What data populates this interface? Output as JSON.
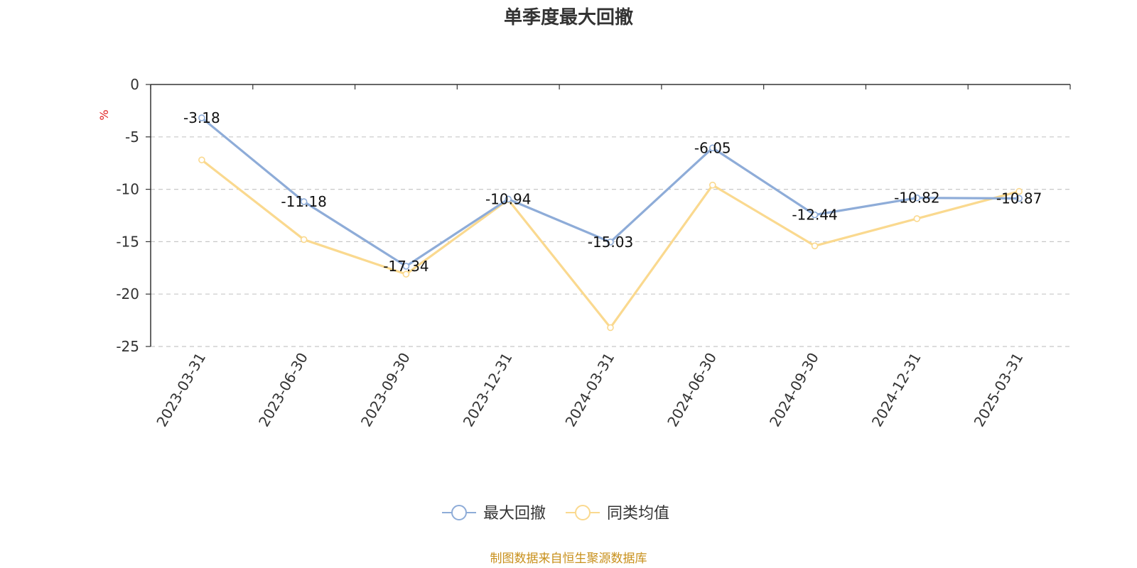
{
  "chart_data": {
    "type": "line",
    "title": "单季度最大回撤",
    "ylabel": "%",
    "xlabel": "",
    "categories": [
      "2023-03-31",
      "2023-06-30",
      "2023-09-30",
      "2023-12-31",
      "2024-03-31",
      "2024-06-30",
      "2024-09-30",
      "2024-12-31",
      "2025-03-31"
    ],
    "ylim": [
      -25,
      0
    ],
    "yticks": [
      0,
      -5,
      -10,
      -15,
      -20,
      -25
    ],
    "grid": true,
    "legend_position": "bottom",
    "series": [
      {
        "name": "最大回撤",
        "color": "#8eacd8",
        "values": [
          -3.18,
          -11.18,
          -17.34,
          -10.94,
          -15.03,
          -6.05,
          -12.44,
          -10.82,
          -10.87
        ],
        "labels": [
          "-3.18",
          "-11.18",
          "-17.34",
          "-10.94",
          "-15.03",
          "-6.05",
          "-12.44",
          "-10.82",
          "-10.87"
        ]
      },
      {
        "name": "同类均值",
        "color": "#fad98f",
        "values": [
          -7.2,
          -14.8,
          -18.1,
          -11.0,
          -23.2,
          -9.6,
          -15.4,
          -12.8,
          -10.2
        ]
      }
    ]
  },
  "footer": {
    "source": "制图数据来自恒生聚源数据库"
  }
}
